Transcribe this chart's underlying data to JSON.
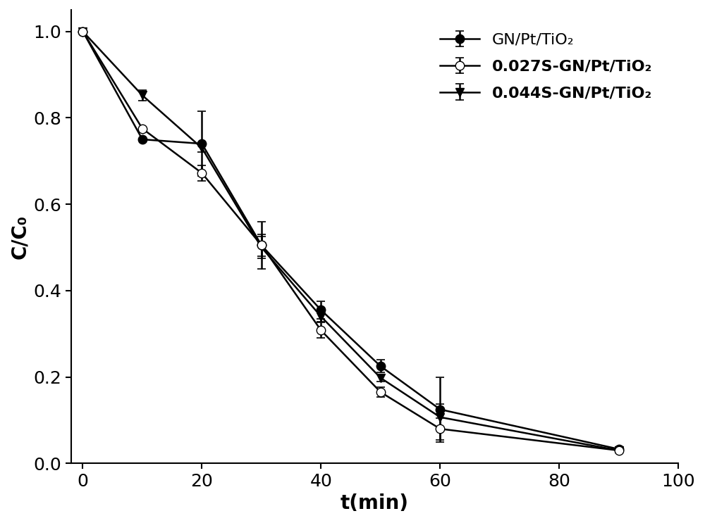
{
  "x": [
    0,
    10,
    20,
    30,
    40,
    50,
    60,
    90
  ],
  "series1_y": [
    1.0,
    0.75,
    0.74,
    0.505,
    0.355,
    0.225,
    0.125,
    0.033
  ],
  "series1_yerr": [
    0.0,
    0.0,
    0.075,
    0.025,
    0.02,
    0.015,
    0.075,
    0.005
  ],
  "series2_y": [
    1.0,
    0.775,
    0.672,
    0.505,
    0.308,
    0.165,
    0.08,
    0.03
  ],
  "series2_yerr": [
    0.0,
    0.0,
    0.018,
    0.055,
    0.018,
    0.012,
    0.025,
    0.005
  ],
  "series3_y": [
    1.0,
    0.852,
    0.73,
    0.5,
    0.34,
    0.198,
    0.107,
    0.03
  ],
  "series3_yerr": [
    0.0,
    0.012,
    0.01,
    0.025,
    0.012,
    0.008,
    0.03,
    0.005
  ],
  "xlabel": "t(min)",
  "ylabel": "C/C₀",
  "xlim": [
    -2,
    100
  ],
  "ylim": [
    0.0,
    1.05
  ],
  "xticks": [
    0,
    20,
    40,
    60,
    80,
    100
  ],
  "yticks": [
    0.0,
    0.2,
    0.4,
    0.6,
    0.8,
    1.0
  ],
  "legend1": "GN/Pt/TiO₂",
  "legend2": "0.027S-GN/Pt/TiO₂",
  "legend3": "0.044S-GN/Pt/TiO₂",
  "color": "#000000",
  "linewidth": 1.8,
  "markersize": 9,
  "capsize": 4
}
